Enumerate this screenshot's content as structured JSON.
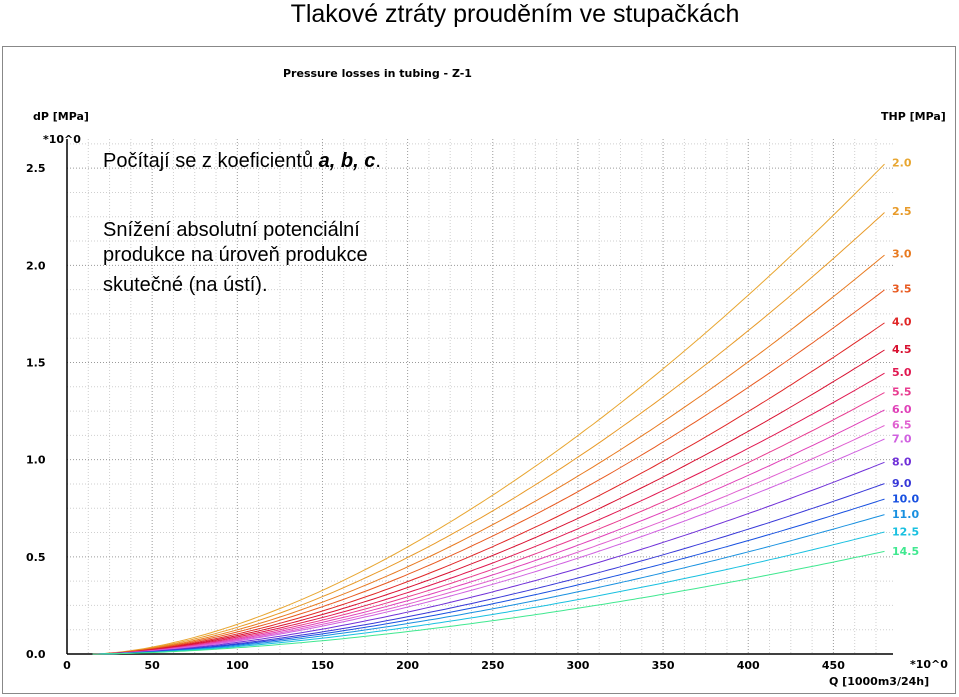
{
  "slide": {
    "title": "Tlakové ztráty prouděním ve stupačkách",
    "note1_text": "Počítají se z koeficientů ",
    "note1_coeffs": "a, b, c",
    "note1_end": ".",
    "note2_lines": [
      "Snížení absolutní potenciální",
      "produkce na úroveň produkce",
      "skutečné (na ústí)."
    ]
  },
  "chart_data": {
    "type": "line",
    "title": "Pressure losses in tubing - Z-1",
    "ylabel": "dP [MPa]",
    "ylabel_multiplier": "*10^0",
    "xlabel": "Q [1000m3/24h]",
    "xlabel_multiplier": "*10^0",
    "right_label": "THP [MPa]",
    "xlim": [
      0,
      485
    ],
    "ylim": [
      0,
      2.65
    ],
    "x_ticks": [
      0,
      50,
      100,
      150,
      200,
      250,
      300,
      350,
      400,
      450
    ],
    "y_ticks": [
      0.0,
      0.5,
      1.0,
      1.5,
      2.0,
      2.5
    ],
    "x_tick_labels": [
      "0",
      "50",
      "100",
      "150",
      "200",
      "250",
      "300",
      "350",
      "400",
      "450"
    ],
    "y_tick_labels": [
      "0.0",
      "0.5",
      "1.0",
      "1.5",
      "2.0",
      "2.5"
    ],
    "grid": true,
    "x_start": 15,
    "x_end": 481,
    "series": [
      {
        "name": "2.0",
        "color": "#e8a630",
        "end_value": 2.53
      },
      {
        "name": "2.5",
        "color": "#e89a28",
        "end_value": 2.28
      },
      {
        "name": "3.0",
        "color": "#e87a20",
        "end_value": 2.06
      },
      {
        "name": "3.5",
        "color": "#e85a20",
        "end_value": 1.88
      },
      {
        "name": "4.0",
        "color": "#e02828",
        "end_value": 1.71
      },
      {
        "name": "4.5",
        "color": "#d81030",
        "end_value": 1.57
      },
      {
        "name": "5.0",
        "color": "#e01850",
        "end_value": 1.45
      },
      {
        "name": "5.5",
        "color": "#e83c90",
        "end_value": 1.35
      },
      {
        "name": "6.0",
        "color": "#e040b8",
        "end_value": 1.26
      },
      {
        "name": "6.5",
        "color": "#e060d0",
        "end_value": 1.18
      },
      {
        "name": "7.0",
        "color": "#d060e0",
        "end_value": 1.11
      },
      {
        "name": "8.0",
        "color": "#7030d8",
        "end_value": 0.99
      },
      {
        "name": "9.0",
        "color": "#3838d8",
        "end_value": 0.88
      },
      {
        "name": "10.0",
        "color": "#1850e0",
        "end_value": 0.8
      },
      {
        "name": "11.0",
        "color": "#1890e0",
        "end_value": 0.72
      },
      {
        "name": "12.5",
        "color": "#18c0e0",
        "end_value": 0.63
      },
      {
        "name": "14.5",
        "color": "#40e890",
        "end_value": 0.53
      }
    ]
  }
}
